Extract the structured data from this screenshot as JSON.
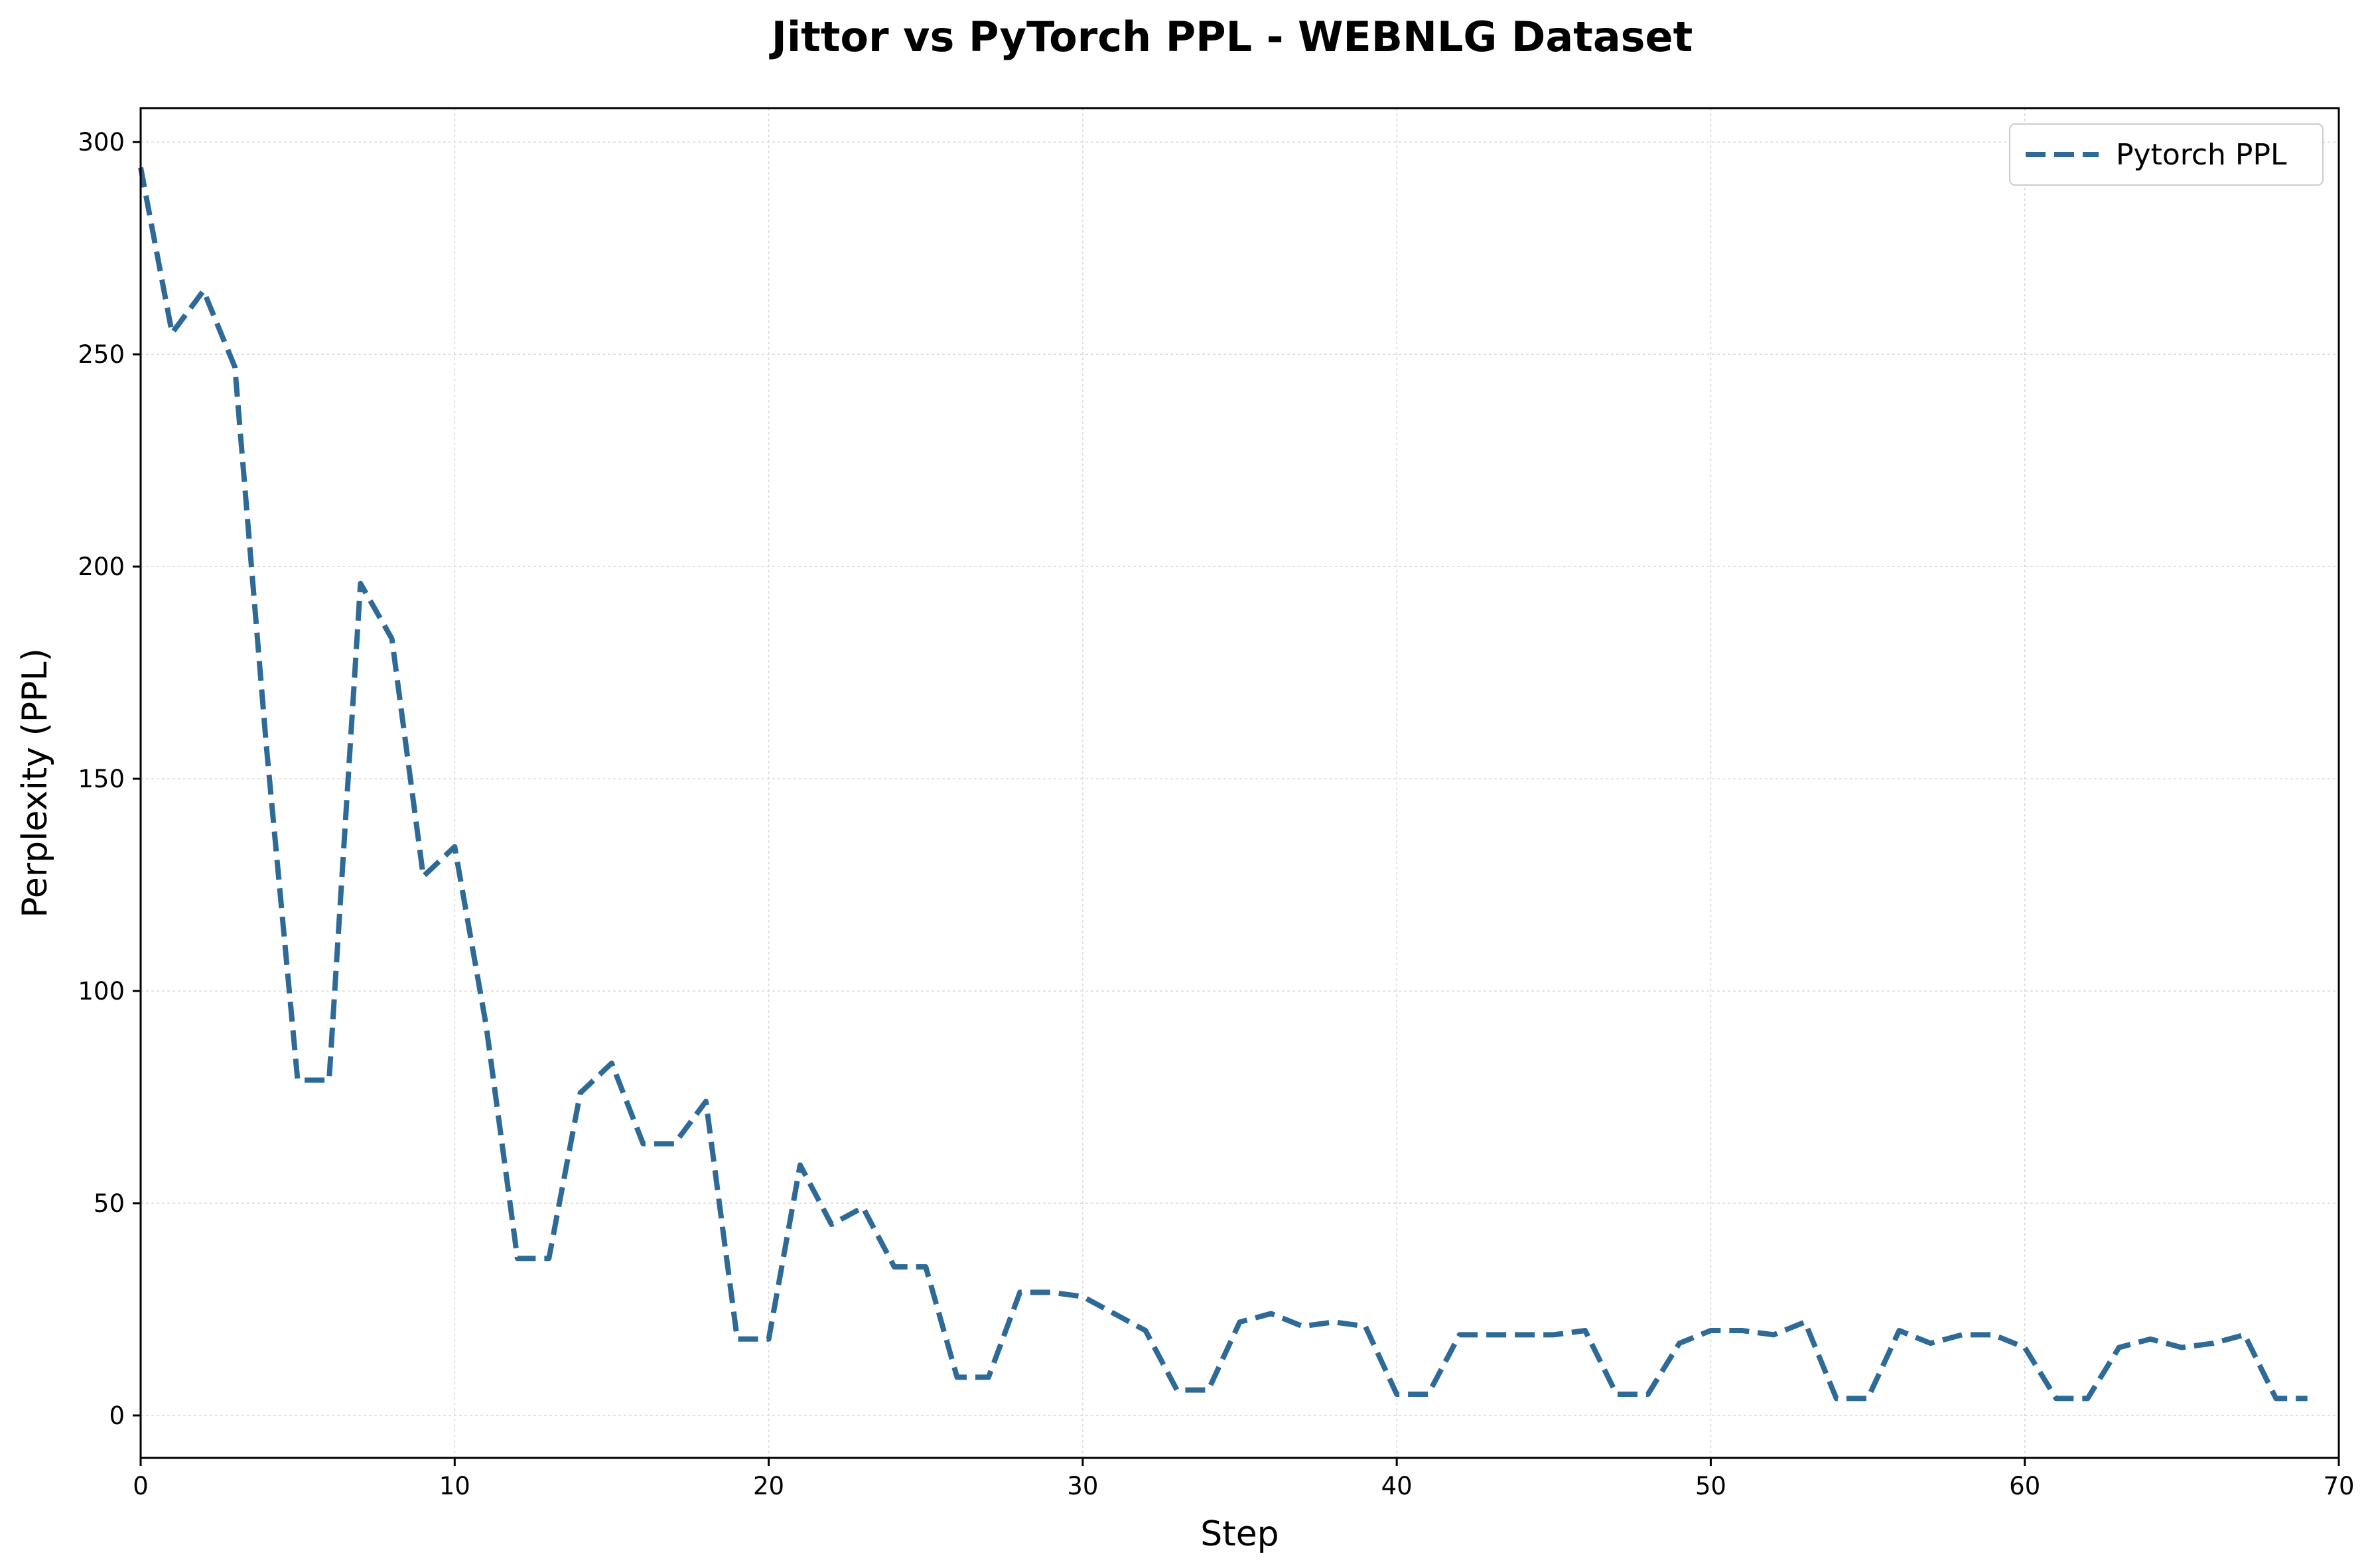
{
  "chart_data": {
    "type": "line",
    "title": "Jittor vs PyTorch PPL - WEBNLG Dataset",
    "xlabel": "Step",
    "ylabel": "Perplexity (PPL)",
    "xlim": [
      0,
      70
    ],
    "ylim": [
      -10,
      308
    ],
    "xticks": [
      0,
      10,
      20,
      30,
      40,
      50,
      60,
      70
    ],
    "yticks": [
      0,
      50,
      100,
      150,
      200,
      250,
      300
    ],
    "grid": true,
    "legend_position": "upper right",
    "series": [
      {
        "name": "Pytorch PPL",
        "color": "#2e6a97",
        "style": "dashed",
        "x": [
          0,
          1,
          2,
          3,
          4,
          5,
          6,
          7,
          8,
          9,
          10,
          11,
          12,
          13,
          14,
          15,
          16,
          17,
          18,
          19,
          20,
          21,
          22,
          23,
          24,
          25,
          26,
          27,
          28,
          29,
          30,
          31,
          32,
          33,
          34,
          35,
          36,
          37,
          38,
          39,
          40,
          41,
          42,
          43,
          44,
          45,
          46,
          47,
          48,
          49,
          50,
          51,
          52,
          53,
          54,
          55,
          56,
          57,
          58,
          59,
          60,
          61,
          62,
          63,
          64,
          65,
          66,
          67,
          68,
          69
        ],
        "y": [
          294,
          255,
          265,
          247,
          158,
          79,
          79,
          196,
          183,
          127,
          134,
          92,
          37,
          37,
          76,
          83,
          64,
          64,
          74,
          18,
          18,
          59,
          45,
          49,
          35,
          35,
          9,
          9,
          29,
          29,
          28,
          24,
          20,
          6,
          6,
          22,
          24,
          21,
          22,
          21,
          5,
          5,
          19,
          19,
          19,
          19,
          20,
          5,
          5,
          17,
          20,
          20,
          19,
          22,
          4,
          4,
          20,
          17,
          19,
          19,
          16,
          4,
          4,
          16,
          18,
          16,
          17,
          19,
          4,
          4
        ]
      }
    ]
  }
}
